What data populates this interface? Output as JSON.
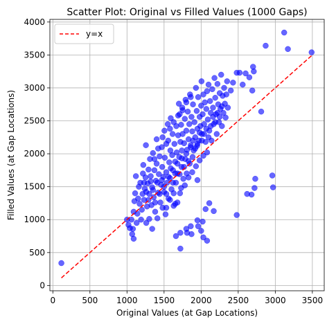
{
  "chart_data": {
    "type": "scatter",
    "title": "Scatter Plot: Original vs Filled Values (1000 Gaps)",
    "xlabel": "Original Values (at Gap Locations)",
    "ylabel": "Filled Values (at Gap Locations)",
    "xlim": [
      -40,
      3660
    ],
    "ylim": [
      -80,
      4040
    ],
    "xticks": [
      0,
      500,
      1000,
      1500,
      2000,
      2500,
      3000,
      3500
    ],
    "yticks": [
      0,
      500,
      1000,
      1500,
      2000,
      2500,
      3000,
      3500,
      4000
    ],
    "grid": true,
    "legend_position": "top-left",
    "series": [
      {
        "kind": "points",
        "color": "#0000ff",
        "alpha": 0.6,
        "points": [
          [
            115,
            340
          ],
          [
            1000,
            1000
          ],
          [
            1020,
            920
          ],
          [
            1040,
            870
          ],
          [
            1060,
            1000
          ],
          [
            1070,
            780
          ],
          [
            1080,
            860
          ],
          [
            1090,
            710
          ],
          [
            1090,
            1120
          ],
          [
            1100,
            1280
          ],
          [
            1110,
            1400
          ],
          [
            1120,
            1660
          ],
          [
            1130,
            950
          ],
          [
            1140,
            1090
          ],
          [
            1150,
            1320
          ],
          [
            1160,
            1500
          ],
          [
            1170,
            1240
          ],
          [
            1180,
            1560
          ],
          [
            1190,
            1000
          ],
          [
            1200,
            1150
          ],
          [
            1210,
            1390
          ],
          [
            1215,
            1700
          ],
          [
            1220,
            1830
          ],
          [
            1230,
            1300
          ],
          [
            1240,
            1470
          ],
          [
            1250,
            1640
          ],
          [
            1255,
            2130
          ],
          [
            1260,
            950
          ],
          [
            1270,
            1200
          ],
          [
            1280,
            1550
          ],
          [
            1290,
            1760
          ],
          [
            1300,
            1010
          ],
          [
            1300,
            1390
          ],
          [
            1310,
            1920
          ],
          [
            1320,
            1660
          ],
          [
            1330,
            1220
          ],
          [
            1340,
            1490
          ],
          [
            1340,
            860
          ],
          [
            1350,
            2010
          ],
          [
            1360,
            1340
          ],
          [
            1370,
            1750
          ],
          [
            1380,
            1120
          ],
          [
            1390,
            1590
          ],
          [
            1400,
            2220
          ],
          [
            1400,
            1850
          ],
          [
            1410,
            1020
          ],
          [
            1420,
            1410
          ],
          [
            1430,
            1690
          ],
          [
            1440,
            1960
          ],
          [
            1450,
            1260
          ],
          [
            1460,
            1530
          ],
          [
            1470,
            2100
          ],
          [
            1475,
            1800
          ],
          [
            1480,
            1180
          ],
          [
            1490,
            1650
          ],
          [
            1500,
            1420
          ],
          [
            1505,
            2350
          ],
          [
            1510,
            1940
          ],
          [
            1520,
            1080
          ],
          [
            1530,
            1720
          ],
          [
            1540,
            1560
          ],
          [
            1550,
            2450
          ],
          [
            1555,
            2200
          ],
          [
            1560,
            1320
          ],
          [
            1570,
            1870
          ],
          [
            1580,
            1630
          ],
          [
            1585,
            2050
          ],
          [
            1590,
            2540
          ],
          [
            1600,
            1460
          ],
          [
            1610,
            1980
          ],
          [
            1615,
            2300
          ],
          [
            1620,
            1750
          ],
          [
            1630,
            1210
          ],
          [
            1640,
            2150
          ],
          [
            1650,
            1880
          ],
          [
            1660,
            1560
          ],
          [
            1665,
            2420
          ],
          [
            1670,
            2020
          ],
          [
            1680,
            1700
          ],
          [
            1690,
            2280
          ],
          [
            1700,
            2760
          ],
          [
            1705,
            1950
          ],
          [
            1710,
            2600
          ],
          [
            1715,
            1400
          ],
          [
            1720,
            2180
          ],
          [
            1730,
            2440
          ],
          [
            1735,
            1800
          ],
          [
            1740,
            2050
          ],
          [
            1745,
            2700
          ],
          [
            1750,
            2300
          ],
          [
            1760,
            1620
          ],
          [
            1770,
            2160
          ],
          [
            1780,
            2530
          ],
          [
            1785,
            1920
          ],
          [
            1790,
            2820
          ],
          [
            1800,
            2350
          ],
          [
            1805,
            1700
          ],
          [
            1810,
            2060
          ],
          [
            1820,
            2640
          ],
          [
            1830,
            2220
          ],
          [
            1840,
            2450
          ],
          [
            1845,
            1850
          ],
          [
            1850,
            2900
          ],
          [
            1860,
            2130
          ],
          [
            1870,
            2560
          ],
          [
            1880,
            2340
          ],
          [
            1885,
            1950
          ],
          [
            1890,
            2750
          ],
          [
            1900,
            2050
          ],
          [
            1910,
            2480
          ],
          [
            1920,
            2250
          ],
          [
            1930,
            3000
          ],
          [
            1940,
            2650
          ],
          [
            1945,
            2120
          ],
          [
            1950,
            2380
          ],
          [
            1960,
            2860
          ],
          [
            1970,
            2200
          ],
          [
            1980,
            2560
          ],
          [
            1990,
            2420
          ],
          [
            2000,
            2730
          ],
          [
            2005,
            3100
          ],
          [
            2010,
            2300
          ],
          [
            2020,
            2600
          ],
          [
            2030,
            2900
          ],
          [
            2040,
            2450
          ],
          [
            2050,
            2780
          ],
          [
            2060,
            2180
          ],
          [
            2070,
            2680
          ],
          [
            2080,
            2950
          ],
          [
            2090,
            2520
          ],
          [
            2100,
            3050
          ],
          [
            2110,
            2350
          ],
          [
            2120,
            2800
          ],
          [
            2130,
            2620
          ],
          [
            2140,
            2200
          ],
          [
            2150,
            2980
          ],
          [
            2160,
            2700
          ],
          [
            2170,
            2450
          ],
          [
            2180,
            3150
          ],
          [
            2190,
            2850
          ],
          [
            2200,
            2600
          ],
          [
            2210,
            2300
          ],
          [
            2220,
            3060
          ],
          [
            2230,
            2750
          ],
          [
            2240,
            2480
          ],
          [
            2250,
            2920
          ],
          [
            2260,
            2680
          ],
          [
            2270,
            3200
          ],
          [
            2280,
            2420
          ],
          [
            2290,
            2880
          ],
          [
            2300,
            2620
          ],
          [
            2310,
            3000
          ],
          [
            2320,
            2760
          ],
          [
            2330,
            2550
          ],
          [
            2340,
            2900
          ],
          [
            2350,
            3100
          ],
          [
            2360,
            2700
          ],
          [
            2400,
            2960
          ],
          [
            2430,
            3080
          ],
          [
            2480,
            3230
          ],
          [
            2520,
            3230
          ],
          [
            2560,
            3050
          ],
          [
            2600,
            3220
          ],
          [
            2650,
            3160
          ],
          [
            2690,
            2960
          ],
          [
            2700,
            3320
          ],
          [
            2710,
            3250
          ],
          [
            2810,
            2640
          ],
          [
            2870,
            3640
          ],
          [
            3120,
            3840
          ],
          [
            3170,
            3590
          ],
          [
            3490,
            3540
          ],
          [
            1230,
            1560
          ],
          [
            1260,
            1420
          ],
          [
            1290,
            1300
          ],
          [
            1320,
            1580
          ],
          [
            1350,
            1450
          ],
          [
            1380,
            1260
          ],
          [
            1410,
            1560
          ],
          [
            1440,
            1390
          ],
          [
            1470,
            1600
          ],
          [
            1500,
            1500
          ],
          [
            1530,
            1390
          ],
          [
            1560,
            1650
          ],
          [
            1590,
            1780
          ],
          [
            1620,
            1560
          ],
          [
            1650,
            1700
          ],
          [
            1680,
            1850
          ],
          [
            1710,
            1690
          ],
          [
            1740,
            1930
          ],
          [
            1770,
            1800
          ],
          [
            1800,
            2000
          ],
          [
            1830,
            1890
          ],
          [
            1860,
            2100
          ],
          [
            1890,
            2200
          ],
          [
            1920,
            2080
          ],
          [
            1950,
            2150
          ],
          [
            1980,
            2320
          ],
          [
            2010,
            2200
          ],
          [
            2040,
            2300
          ],
          [
            2070,
            2380
          ],
          [
            2100,
            2250
          ],
          [
            2130,
            2420
          ],
          [
            2160,
            2560
          ],
          [
            2190,
            2480
          ],
          [
            2220,
            2620
          ],
          [
            2250,
            2560
          ],
          [
            2280,
            2720
          ],
          [
            1370,
            1920
          ],
          [
            1420,
            2080
          ],
          [
            1480,
            2250
          ],
          [
            1530,
            2150
          ],
          [
            1580,
            2380
          ],
          [
            1630,
            2480
          ],
          [
            1690,
            2580
          ],
          [
            1750,
            2660
          ],
          [
            1800,
            2780
          ],
          [
            1860,
            2860
          ],
          [
            1530,
            1180
          ],
          [
            1580,
            1300
          ],
          [
            1630,
            1400
          ],
          [
            1680,
            1260
          ],
          [
            1730,
            1480
          ],
          [
            1780,
            1520
          ],
          [
            1830,
            1640
          ],
          [
            1880,
            1720
          ],
          [
            1930,
            1810
          ],
          [
            1980,
            1900
          ],
          [
            2030,
            1970
          ],
          [
            2080,
            2020
          ],
          [
            1660,
            750
          ],
          [
            1720,
            560
          ],
          [
            1720,
            800
          ],
          [
            1800,
            860
          ],
          [
            1810,
            800
          ],
          [
            1860,
            900
          ],
          [
            1870,
            780
          ],
          [
            1950,
            990
          ],
          [
            1960,
            900
          ],
          [
            2000,
            830
          ],
          [
            2030,
            730
          ],
          [
            2080,
            680
          ],
          [
            2110,
            1250
          ],
          [
            2170,
            1130
          ],
          [
            1950,
            1600
          ],
          [
            2480,
            1070
          ],
          [
            2620,
            1390
          ],
          [
            2680,
            1380
          ],
          [
            2720,
            1480
          ],
          [
            2730,
            1620
          ],
          [
            2960,
            1670
          ],
          [
            2970,
            1490
          ],
          [
            2020,
            970
          ],
          [
            1650,
            1240
          ],
          [
            2060,
            1160
          ]
        ]
      },
      {
        "kind": "line",
        "name": "y=x",
        "color": "#ff0000",
        "dash": true,
        "points": [
          [
            115,
            115
          ],
          [
            3490,
            3490
          ]
        ]
      }
    ]
  }
}
